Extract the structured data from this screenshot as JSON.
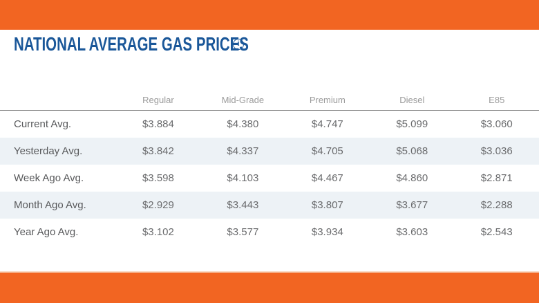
{
  "header": {
    "title": "NATIONAL AVERAGE GAS PRICES"
  },
  "icons": {
    "info_glyph": "i"
  },
  "colors": {
    "orange": "#F26522",
    "title_blue": "#1A5799",
    "stripe": "#EDF2F6",
    "header_gray": "#9A9A9A",
    "label_gray": "#58595B",
    "value_gray": "#6A6B6D",
    "divider": "#7F7F7F"
  },
  "table": {
    "columns": [
      "Regular",
      "Mid-Grade",
      "Premium",
      "Diesel",
      "E85"
    ],
    "rows": [
      {
        "label": "Current Avg.",
        "values": [
          "$3.884",
          "$4.380",
          "$4.747",
          "$5.099",
          "$3.060"
        ]
      },
      {
        "label": "Yesterday Avg.",
        "values": [
          "$3.842",
          "$4.337",
          "$4.705",
          "$5.068",
          "$3.036"
        ]
      },
      {
        "label": "Week Ago Avg.",
        "values": [
          "$3.598",
          "$4.103",
          "$4.467",
          "$4.860",
          "$2.871"
        ]
      },
      {
        "label": "Month Ago Avg.",
        "values": [
          "$2.929",
          "$3.443",
          "$3.807",
          "$3.677",
          "$2.288"
        ]
      },
      {
        "label": "Year Ago Avg.",
        "values": [
          "$3.102",
          "$3.577",
          "$3.934",
          "$3.603",
          "$2.543"
        ]
      }
    ]
  }
}
